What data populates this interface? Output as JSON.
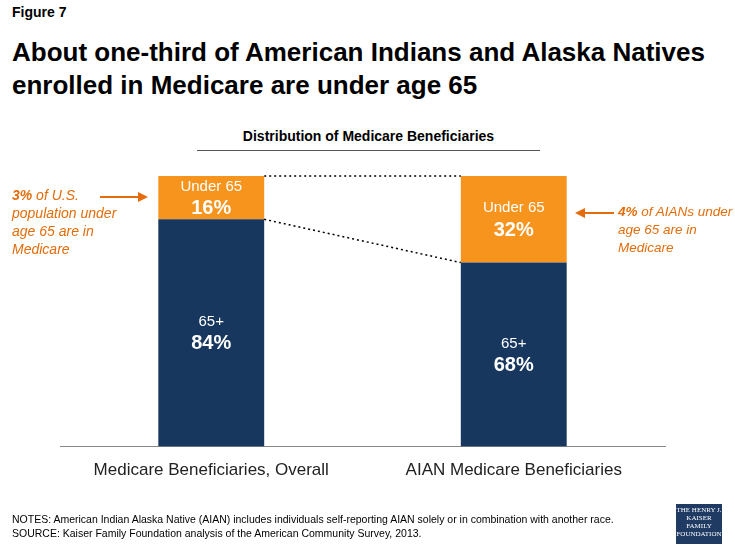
{
  "chart_data": {
    "type": "bar",
    "figure_label": "Figure 7",
    "title": "About one-third of American Indians and Alaska Natives enrolled in Medicare are under age 65",
    "subtitle": "Distribution of Medicare Beneficiaries",
    "categories": [
      "Medicare Beneficiaries, Overall",
      "AIAN Medicare Beneficiaries"
    ],
    "series": [
      {
        "name": "65+",
        "color": "#17375e",
        "values": [
          84,
          68
        ],
        "value_labels": [
          "84%",
          "68%"
        ]
      },
      {
        "name": "Under 65",
        "color": "#f7941d",
        "values": [
          16,
          32
        ],
        "value_labels": [
          "16%",
          "32%"
        ]
      }
    ],
    "stacked": true,
    "data_labels": true,
    "tick_labels": "x",
    "grid": false,
    "ylim": [
      0,
      100
    ],
    "annotations": [
      {
        "emphasis": "3%",
        "text": "of U.S. population under age 65 are in Medicare"
      },
      {
        "emphasis": "4%",
        "text": "of AIANs under age 65 are in Medicare"
      }
    ],
    "notes": "NOTES: American Indian Alaska Native (AIAN) includes individuals self-reporting AIAN solely or in combination with another race.",
    "source": "SOURCE: Kaiser Family Foundation analysis of the American Community Survey, 2013.",
    "logo": "THE HENRY J. KAISER FAMILY FOUNDATION"
  }
}
